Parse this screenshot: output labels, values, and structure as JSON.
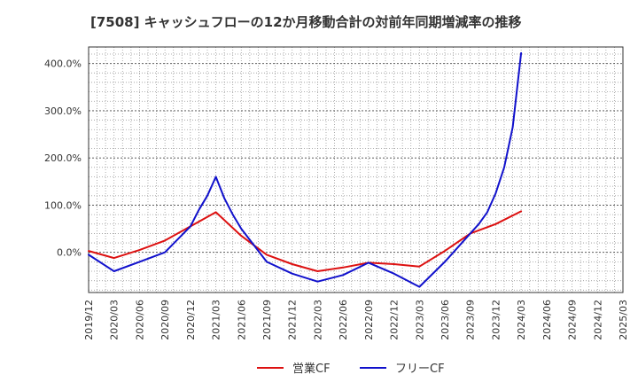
{
  "title": "[7508]  キャッシュフローの12か月移動合計の対前年同期増減率の推移",
  "chart_data": {
    "type": "line",
    "title": "[7508]  キャッシュフローの12か月移動合計の対前年同期増減率の推移",
    "xlabel": "",
    "ylabel": "",
    "x": [
      "2019/12",
      "2020/03",
      "2020/06",
      "2020/09",
      "2020/12",
      "2021/03",
      "2021/06",
      "2021/09",
      "2021/12",
      "2022/03",
      "2022/06",
      "2022/09",
      "2022/12",
      "2023/03",
      "2023/06",
      "2023/09",
      "2023/12",
      "2024/03",
      "2024/06",
      "2024/09",
      "2024/12",
      "2025/03"
    ],
    "x_tick_labels": [
      "2019/12",
      "2020/03",
      "2020/06",
      "2020/09",
      "2020/12",
      "2021/03",
      "2021/06",
      "2021/09",
      "2021/12",
      "2022/03",
      "2022/06",
      "2022/09",
      "2022/12",
      "2023/03",
      "2023/06",
      "2023/09",
      "2023/12",
      "2024/03",
      "2024/06",
      "2024/09",
      "2024/12",
      "2025/03"
    ],
    "y_ticks": [
      0,
      100,
      200,
      300,
      400
    ],
    "y_tick_labels": [
      "0.0%",
      "100.0%",
      "200.0%",
      "300.0%",
      "400.0%"
    ],
    "ylim": [
      -85,
      435
    ],
    "grid": true,
    "legend_position": "bottom",
    "series": [
      {
        "name": "営業CF",
        "color": "#dd1111",
        "points": [
          [
            "2019/12",
            3
          ],
          [
            "2020/03",
            -12
          ],
          [
            "2020/06",
            5
          ],
          [
            "2020/09",
            25
          ],
          [
            "2020/12",
            55
          ],
          [
            "2021/03",
            85
          ],
          [
            "2021/06",
            35
          ],
          [
            "2021/09",
            -5
          ],
          [
            "2021/12",
            -25
          ],
          [
            "2022/03",
            -40
          ],
          [
            "2022/06",
            -32
          ],
          [
            "2022/09",
            -22
          ],
          [
            "2022/12",
            -25
          ],
          [
            "2023/03",
            -30
          ],
          [
            "2023/06",
            3
          ],
          [
            "2023/09",
            40
          ],
          [
            "2023/12",
            60
          ],
          [
            "2024/03",
            87
          ]
        ]
      },
      {
        "name": "フリーCF",
        "color": "#1111cc",
        "points": [
          [
            "2019/12",
            -5
          ],
          [
            "2020/03",
            -40
          ],
          [
            "2020/06",
            -20
          ],
          [
            "2020/09",
            0
          ],
          [
            "2020/12",
            55
          ],
          [
            "2021/01",
            90
          ],
          [
            "2021/02",
            120
          ],
          [
            "2021/03",
            160
          ],
          [
            "2021/04",
            115
          ],
          [
            "2021/05",
            80
          ],
          [
            "2021/06",
            50
          ],
          [
            "2021/09",
            -20
          ],
          [
            "2021/12",
            -45
          ],
          [
            "2022/03",
            -62
          ],
          [
            "2022/06",
            -48
          ],
          [
            "2022/09",
            -22
          ],
          [
            "2022/12",
            -45
          ],
          [
            "2023/03",
            -73
          ],
          [
            "2023/06",
            -20
          ],
          [
            "2023/09",
            40
          ],
          [
            "2023/10",
            60
          ],
          [
            "2023/11",
            85
          ],
          [
            "2023/12",
            125
          ],
          [
            "2024/01",
            180
          ],
          [
            "2024/02",
            265
          ],
          [
            "2024/03",
            422
          ]
        ]
      }
    ]
  }
}
